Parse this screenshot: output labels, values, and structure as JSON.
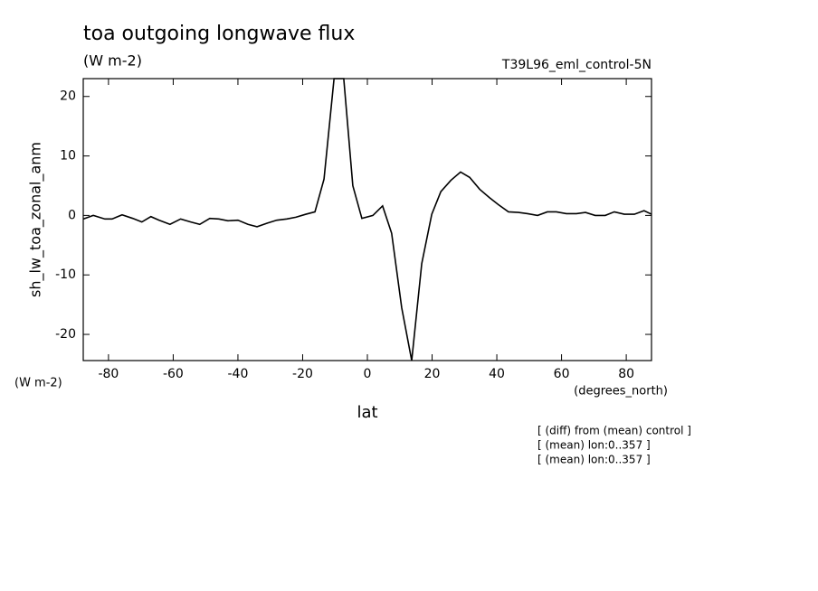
{
  "chart_data": {
    "type": "line",
    "title": "toa outgoing longwave flux",
    "subtitle": "(W m-2)",
    "dataset_label": "T39L96_eml_control-5N",
    "y_label": "sh_lw_toa_zonal_anm",
    "y_units": "(W m-2)",
    "x_units": "(degrees_north)",
    "x_label": "lat",
    "notes": [
      "[ (diff) from (mean) control ]",
      "[ (mean) lon:0..357 ]",
      "[ (mean) lon:0..357 ]"
    ],
    "color": "#000000",
    "x": [
      -87.8,
      -84.7,
      -81.1,
      -78.9,
      -75.8,
      -72.5,
      -69.7,
      -66.9,
      -64.4,
      -61,
      -57.7,
      -54.6,
      -51.8,
      -48.7,
      -45.9,
      -43.1,
      -40,
      -36.9,
      -34.1,
      -31,
      -28,
      -24.9,
      -22.1,
      -19,
      -16.2,
      -13.4,
      -10.3,
      -7.3,
      -4.5,
      -1.7,
      1.7,
      4.7,
      7.5,
      10.6,
      13.7,
      16.8,
      19.9,
      22.7,
      25.8,
      28.8,
      31.6,
      34.7,
      37.7,
      40.5,
      43.6,
      46.7,
      49.5,
      52.6,
      55.6,
      58.4,
      61.5,
      64.6,
      67.4,
      70.4,
      73.5,
      76.3,
      79.4,
      82.5,
      85.5,
      87.8
    ],
    "values": [
      -0.6,
      0,
      -0.6,
      -0.6,
      0.1,
      -0.5,
      -1.1,
      -0.2,
      -0.8,
      -1.5,
      -0.6,
      -1.1,
      -1.5,
      -0.5,
      -0.6,
      -0.9,
      -0.8,
      -1.5,
      -1.9,
      -1.3,
      -0.8,
      -0.6,
      -0.3,
      0.2,
      0.6,
      6.1,
      23,
      23,
      5,
      -0.5,
      0,
      1.6,
      -3,
      -15.5,
      -24.4,
      -8.1,
      0.2,
      4,
      5.9,
      7.3,
      6.4,
      4.4,
      3,
      1.8,
      0.6,
      0.5,
      0.3,
      0,
      0.6,
      0.6,
      0.3,
      0.3,
      0.5,
      0,
      0,
      0.6,
      0.2,
      0.2,
      0.8,
      0.2
    ],
    "xlim": [
      -87.8,
      87.8
    ],
    "ylim": [
      -24.4,
      23.0
    ],
    "xticks": [
      -80,
      -60,
      -40,
      -20,
      0,
      20,
      40,
      60,
      80
    ],
    "yticks": [
      -20,
      -10,
      0,
      10,
      20
    ]
  }
}
